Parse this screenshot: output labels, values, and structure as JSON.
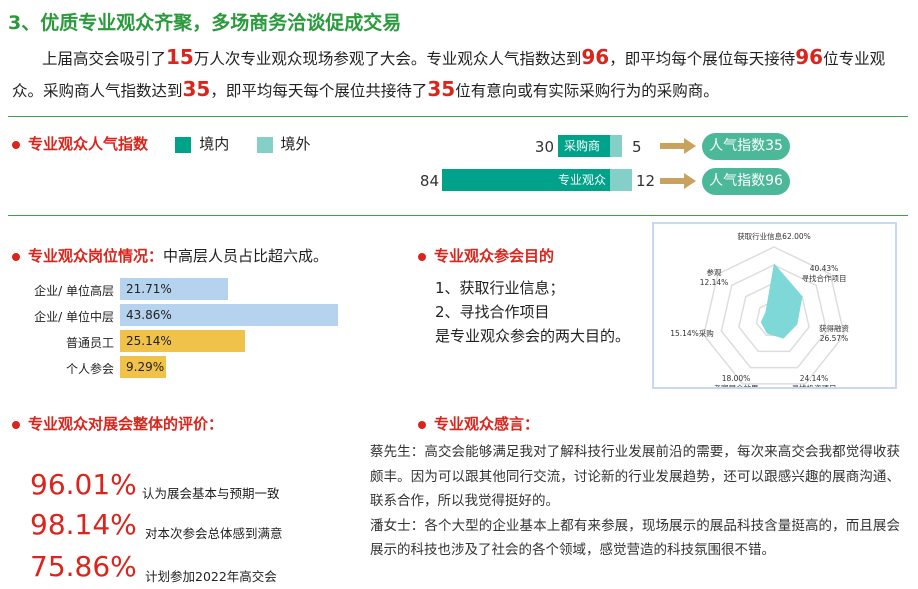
{
  "title": "3、优质专业观众齐聚，多场商务洽谈促成交易",
  "intro": {
    "p1": "上届高交会吸引了",
    "n1": "15",
    "p2": "万人次专业观众现场参观了大会。专业观众人气指数达到",
    "n2": "96",
    "p3": "，即平均每个展位每天接待",
    "n3": "96",
    "p4": "位专业观众。采购商人气指数达到",
    "n4": "35",
    "p5": "，即平均每天每个展位共接待了",
    "n5": "35",
    "p6": "位有意向或有实际采购行为的采购商。"
  },
  "popularity": {
    "heading": "专业观众人气指数",
    "legend": [
      {
        "label": "境内",
        "color": "#00a38a"
      },
      {
        "label": "境外",
        "color": "#84cfc8"
      }
    ],
    "rows": [
      {
        "label": "采购商",
        "domestic": 30,
        "foreign": 5,
        "index": "人气指数35"
      },
      {
        "label": "专业观众",
        "domestic": 84,
        "foreign": 12,
        "index": "人气指数96"
      }
    ]
  },
  "positions": {
    "heading": "专业观众岗位情况：",
    "subheading": "中高层人员占比超六成。",
    "rows": [
      {
        "label": "企业/ 单位高层",
        "value": "21.71%",
        "pct": 21.71,
        "color": "#b5d3ef"
      },
      {
        "label": "企业/ 单位中层",
        "value": "43.86%",
        "pct": 43.86,
        "color": "#b5d3ef"
      },
      {
        "label": "普通员工",
        "value": "25.14%",
        "pct": 25.14,
        "color": "#f0c24a"
      },
      {
        "label": "个人参会",
        "value": "9.29%",
        "pct": 9.29,
        "color": "#f0c24a"
      }
    ]
  },
  "purpose": {
    "heading": "专业观众参会目的",
    "lines": [
      "1、获取行业信息；",
      "2、寻找合作项目",
      "是专业观众参会的两大目的。"
    ]
  },
  "chart_data": {
    "type": "radar",
    "max": 80,
    "color": "#7fd8d8",
    "axes": [
      {
        "label": "获取行业信息62.00%",
        "value": 62.0
      },
      {
        "label": "40.43%",
        "label2": "寻找合作项目",
        "value": 40.43
      },
      {
        "label": "获得融资",
        "label2": "26.57%",
        "value": 26.57
      },
      {
        "label": "24.14%",
        "label2": "寻找投资项目",
        "value": 24.14
      },
      {
        "label": "18.00%",
        "label2": "考察展会效果",
        "value": 18.0
      },
      {
        "label": "15.14%采购",
        "value": 15.14
      },
      {
        "label": "参观",
        "label2": "12.14%",
        "value": 12.14
      }
    ]
  },
  "evaluation": {
    "heading": "专业观众对展会整体的评价：",
    "items": [
      {
        "pct": "96.01%",
        "text": "认为展会基本与预期一致"
      },
      {
        "pct": "98.14%",
        "text": "对本次参会总体感到满意"
      },
      {
        "pct": "75.86%",
        "text": "计划参加2022年高交会"
      }
    ]
  },
  "feedback": {
    "heading": "专业观众感言：",
    "quotes": [
      {
        "name": "蔡先生：",
        "text": "高交会能够满足我对了解科技行业发展前沿的需要，每次来高交会我都觉得收获颇丰。因为可以跟其他同行交流，讨论新的行业发展趋势，还可以跟感兴趣的展商沟通、联系合作，所以我觉得挺好的。"
      },
      {
        "name": "潘女士：",
        "text": "各个大型的企业基本上都有来参展，现场展示的展品科技含量挺高的，而且展会展示的科技也涉及了社会的各个领域，感觉营造的科技氛围很不错。"
      }
    ]
  }
}
